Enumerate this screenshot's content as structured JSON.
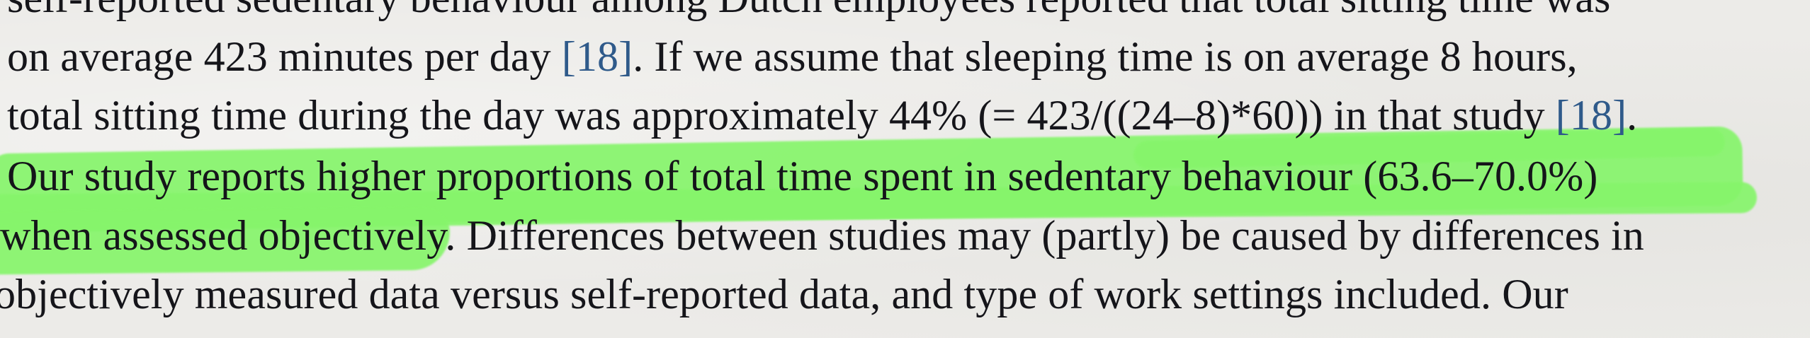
{
  "document": {
    "lines": [
      {
        "text": "self-reported sedentary behaviour among Dutch employees reported that total sitting time was"
      },
      {
        "pre": "on average 423 minutes per day ",
        "ref": "[18]",
        "post": ". If we assume that sleeping time is on average 8 hours,"
      },
      {
        "pre": "total sitting time during the day was approximately 44% (= 423/((24–8)*60)) in that study ",
        "ref": "[18]",
        "post": "."
      },
      {
        "text": "Our study reports higher proportions of total time spent in sedentary behaviour (63.6–70.0%)"
      },
      {
        "text": "when assessed objectively. Differences between studies may (partly) be caused by differences in"
      },
      {
        "text": "objectively measured data versus self-reported data, and type of work settings included. Our"
      },
      {
        "text": "Our"
      }
    ]
  },
  "highlight": {
    "color": "#86f56b",
    "span_text": "Our study reports higher proportions of total time spent in sedentary behaviour (63.6–70.0%) when assessed objectively."
  },
  "ref_color": "#2f5a8a"
}
